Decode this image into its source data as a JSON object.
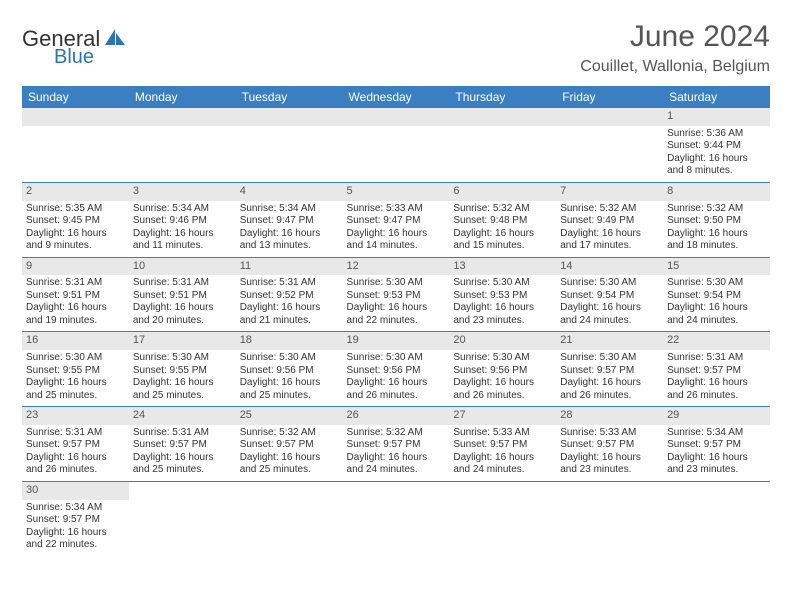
{
  "logo": {
    "part1": "General",
    "part2": "Blue"
  },
  "title": "June 2024",
  "location": "Couillet, Wallonia, Belgium",
  "colors": {
    "header_bg": "#3a7fc2",
    "header_text": "#ffffff",
    "daynum_bg": "#e8e8e8",
    "row_border": "#3a7fc2",
    "logo_accent": "#2a74b8"
  },
  "typography": {
    "title_fontsize": 30,
    "location_fontsize": 16,
    "weekday_fontsize": 12,
    "cell_fontsize": 10
  },
  "weekdays": [
    "Sunday",
    "Monday",
    "Tuesday",
    "Wednesday",
    "Thursday",
    "Friday",
    "Saturday"
  ],
  "weeks": [
    [
      null,
      null,
      null,
      null,
      null,
      null,
      {
        "n": "1",
        "sr": "Sunrise: 5:36 AM",
        "ss": "Sunset: 9:44 PM",
        "d1": "Daylight: 16 hours",
        "d2": "and 8 minutes."
      }
    ],
    [
      {
        "n": "2",
        "sr": "Sunrise: 5:35 AM",
        "ss": "Sunset: 9:45 PM",
        "d1": "Daylight: 16 hours",
        "d2": "and 9 minutes."
      },
      {
        "n": "3",
        "sr": "Sunrise: 5:34 AM",
        "ss": "Sunset: 9:46 PM",
        "d1": "Daylight: 16 hours",
        "d2": "and 11 minutes."
      },
      {
        "n": "4",
        "sr": "Sunrise: 5:34 AM",
        "ss": "Sunset: 9:47 PM",
        "d1": "Daylight: 16 hours",
        "d2": "and 13 minutes."
      },
      {
        "n": "5",
        "sr": "Sunrise: 5:33 AM",
        "ss": "Sunset: 9:47 PM",
        "d1": "Daylight: 16 hours",
        "d2": "and 14 minutes."
      },
      {
        "n": "6",
        "sr": "Sunrise: 5:32 AM",
        "ss": "Sunset: 9:48 PM",
        "d1": "Daylight: 16 hours",
        "d2": "and 15 minutes."
      },
      {
        "n": "7",
        "sr": "Sunrise: 5:32 AM",
        "ss": "Sunset: 9:49 PM",
        "d1": "Daylight: 16 hours",
        "d2": "and 17 minutes."
      },
      {
        "n": "8",
        "sr": "Sunrise: 5:32 AM",
        "ss": "Sunset: 9:50 PM",
        "d1": "Daylight: 16 hours",
        "d2": "and 18 minutes."
      }
    ],
    [
      {
        "n": "9",
        "sr": "Sunrise: 5:31 AM",
        "ss": "Sunset: 9:51 PM",
        "d1": "Daylight: 16 hours",
        "d2": "and 19 minutes."
      },
      {
        "n": "10",
        "sr": "Sunrise: 5:31 AM",
        "ss": "Sunset: 9:51 PM",
        "d1": "Daylight: 16 hours",
        "d2": "and 20 minutes."
      },
      {
        "n": "11",
        "sr": "Sunrise: 5:31 AM",
        "ss": "Sunset: 9:52 PM",
        "d1": "Daylight: 16 hours",
        "d2": "and 21 minutes."
      },
      {
        "n": "12",
        "sr": "Sunrise: 5:30 AM",
        "ss": "Sunset: 9:53 PM",
        "d1": "Daylight: 16 hours",
        "d2": "and 22 minutes."
      },
      {
        "n": "13",
        "sr": "Sunrise: 5:30 AM",
        "ss": "Sunset: 9:53 PM",
        "d1": "Daylight: 16 hours",
        "d2": "and 23 minutes."
      },
      {
        "n": "14",
        "sr": "Sunrise: 5:30 AM",
        "ss": "Sunset: 9:54 PM",
        "d1": "Daylight: 16 hours",
        "d2": "and 24 minutes."
      },
      {
        "n": "15",
        "sr": "Sunrise: 5:30 AM",
        "ss": "Sunset: 9:54 PM",
        "d1": "Daylight: 16 hours",
        "d2": "and 24 minutes."
      }
    ],
    [
      {
        "n": "16",
        "sr": "Sunrise: 5:30 AM",
        "ss": "Sunset: 9:55 PM",
        "d1": "Daylight: 16 hours",
        "d2": "and 25 minutes."
      },
      {
        "n": "17",
        "sr": "Sunrise: 5:30 AM",
        "ss": "Sunset: 9:55 PM",
        "d1": "Daylight: 16 hours",
        "d2": "and 25 minutes."
      },
      {
        "n": "18",
        "sr": "Sunrise: 5:30 AM",
        "ss": "Sunset: 9:56 PM",
        "d1": "Daylight: 16 hours",
        "d2": "and 25 minutes."
      },
      {
        "n": "19",
        "sr": "Sunrise: 5:30 AM",
        "ss": "Sunset: 9:56 PM",
        "d1": "Daylight: 16 hours",
        "d2": "and 26 minutes."
      },
      {
        "n": "20",
        "sr": "Sunrise: 5:30 AM",
        "ss": "Sunset: 9:56 PM",
        "d1": "Daylight: 16 hours",
        "d2": "and 26 minutes."
      },
      {
        "n": "21",
        "sr": "Sunrise: 5:30 AM",
        "ss": "Sunset: 9:57 PM",
        "d1": "Daylight: 16 hours",
        "d2": "and 26 minutes."
      },
      {
        "n": "22",
        "sr": "Sunrise: 5:31 AM",
        "ss": "Sunset: 9:57 PM",
        "d1": "Daylight: 16 hours",
        "d2": "and 26 minutes."
      }
    ],
    [
      {
        "n": "23",
        "sr": "Sunrise: 5:31 AM",
        "ss": "Sunset: 9:57 PM",
        "d1": "Daylight: 16 hours",
        "d2": "and 26 minutes."
      },
      {
        "n": "24",
        "sr": "Sunrise: 5:31 AM",
        "ss": "Sunset: 9:57 PM",
        "d1": "Daylight: 16 hours",
        "d2": "and 25 minutes."
      },
      {
        "n": "25",
        "sr": "Sunrise: 5:32 AM",
        "ss": "Sunset: 9:57 PM",
        "d1": "Daylight: 16 hours",
        "d2": "and 25 minutes."
      },
      {
        "n": "26",
        "sr": "Sunrise: 5:32 AM",
        "ss": "Sunset: 9:57 PM",
        "d1": "Daylight: 16 hours",
        "d2": "and 24 minutes."
      },
      {
        "n": "27",
        "sr": "Sunrise: 5:33 AM",
        "ss": "Sunset: 9:57 PM",
        "d1": "Daylight: 16 hours",
        "d2": "and 24 minutes."
      },
      {
        "n": "28",
        "sr": "Sunrise: 5:33 AM",
        "ss": "Sunset: 9:57 PM",
        "d1": "Daylight: 16 hours",
        "d2": "and 23 minutes."
      },
      {
        "n": "29",
        "sr": "Sunrise: 5:34 AM",
        "ss": "Sunset: 9:57 PM",
        "d1": "Daylight: 16 hours",
        "d2": "and 23 minutes."
      }
    ],
    [
      {
        "n": "30",
        "sr": "Sunrise: 5:34 AM",
        "ss": "Sunset: 9:57 PM",
        "d1": "Daylight: 16 hours",
        "d2": "and 22 minutes."
      },
      null,
      null,
      null,
      null,
      null,
      null
    ]
  ]
}
